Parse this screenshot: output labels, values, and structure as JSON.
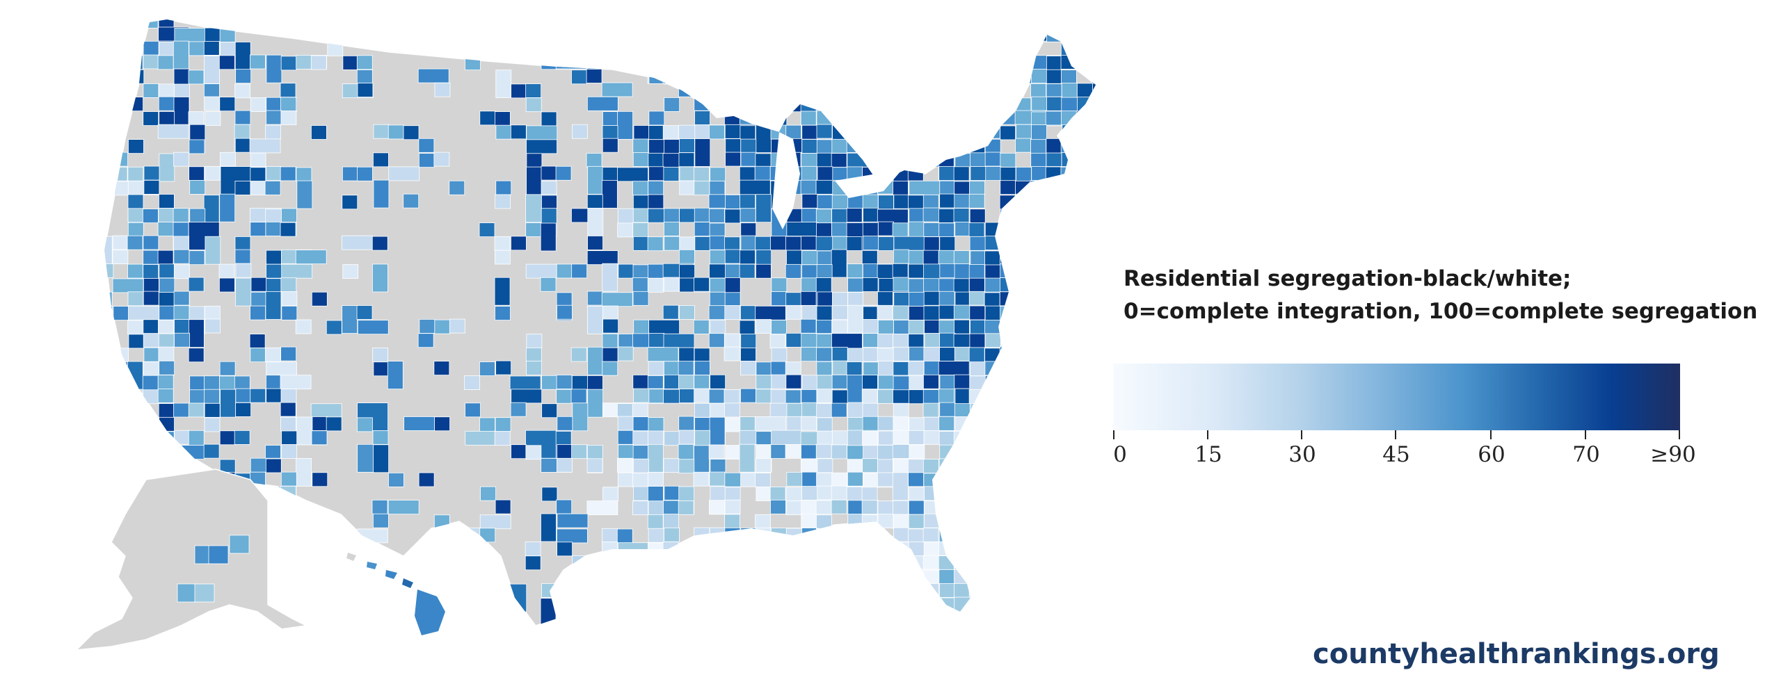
{
  "legend": {
    "title_line1": "Residential segregation-black/white;",
    "title_line2": "0=complete integration, 100=complete segregation",
    "ticks": [
      "0",
      "15",
      "30",
      "45",
      "60",
      "70",
      "≥90"
    ],
    "colors": {
      "no_data": "#d4d4d4",
      "low": "#f7fbff",
      "mid": "#5aa0d6",
      "high": "#1f2f62"
    }
  },
  "source": "countyhealthrankings.org",
  "map": {
    "regions": [
      "contiguous-us",
      "alaska",
      "hawaii"
    ]
  }
}
